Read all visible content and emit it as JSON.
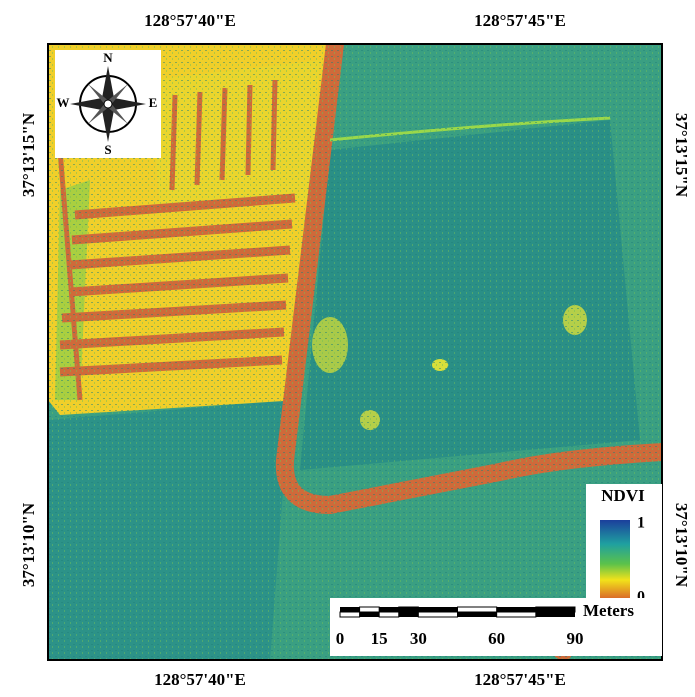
{
  "map": {
    "top_labels": [
      "128°57'40\"E",
      "128°57'45\"E"
    ],
    "bottom_labels": [
      "128°57'40\"E",
      "128°57'45\"E"
    ],
    "left_labels": [
      "37°13'15\"N",
      "37°13'10\"N"
    ],
    "right_labels": [
      "37°13'15\"N",
      "37°13'10\"N"
    ],
    "compass": {
      "n": "N",
      "s": "S",
      "e": "E",
      "w": "W"
    },
    "legend": {
      "title": "NDVI",
      "max": 1,
      "min": 0
    },
    "scale_bar": {
      "unit": "Meters",
      "ticks": [
        0,
        15,
        30,
        60,
        90
      ]
    }
  }
}
